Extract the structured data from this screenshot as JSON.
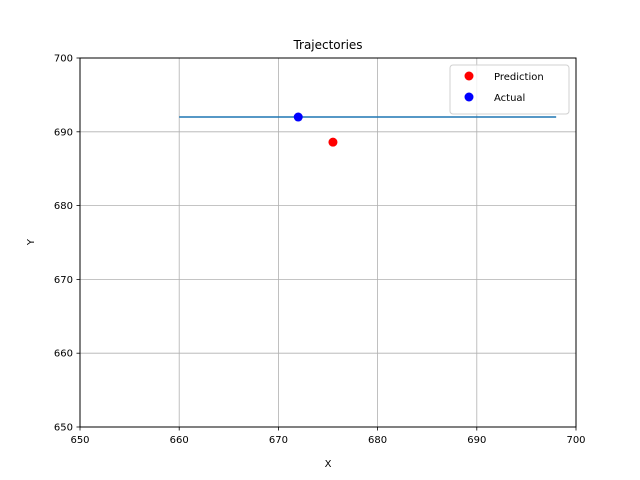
{
  "chart_data": {
    "type": "scatter",
    "title": "Trajectories",
    "xlabel": "X",
    "ylabel": "Y",
    "xlim": [
      650,
      700
    ],
    "ylim": [
      650,
      700
    ],
    "xticks": [
      650,
      660,
      670,
      680,
      690,
      700
    ],
    "yticks": [
      650,
      660,
      670,
      680,
      690,
      700
    ],
    "grid": true,
    "legend_position": "top-right",
    "series": [
      {
        "kind": "line",
        "color": "#1f77b4",
        "x": [
          660,
          698
        ],
        "y": [
          692,
          692
        ]
      },
      {
        "kind": "scatter",
        "name": "Prediction",
        "color": "#ff0000",
        "x": [
          675.5
        ],
        "y": [
          688.6
        ]
      },
      {
        "kind": "scatter",
        "name": "Actual",
        "color": "#0000ff",
        "x": [
          672
        ],
        "y": [
          692
        ]
      }
    ]
  }
}
